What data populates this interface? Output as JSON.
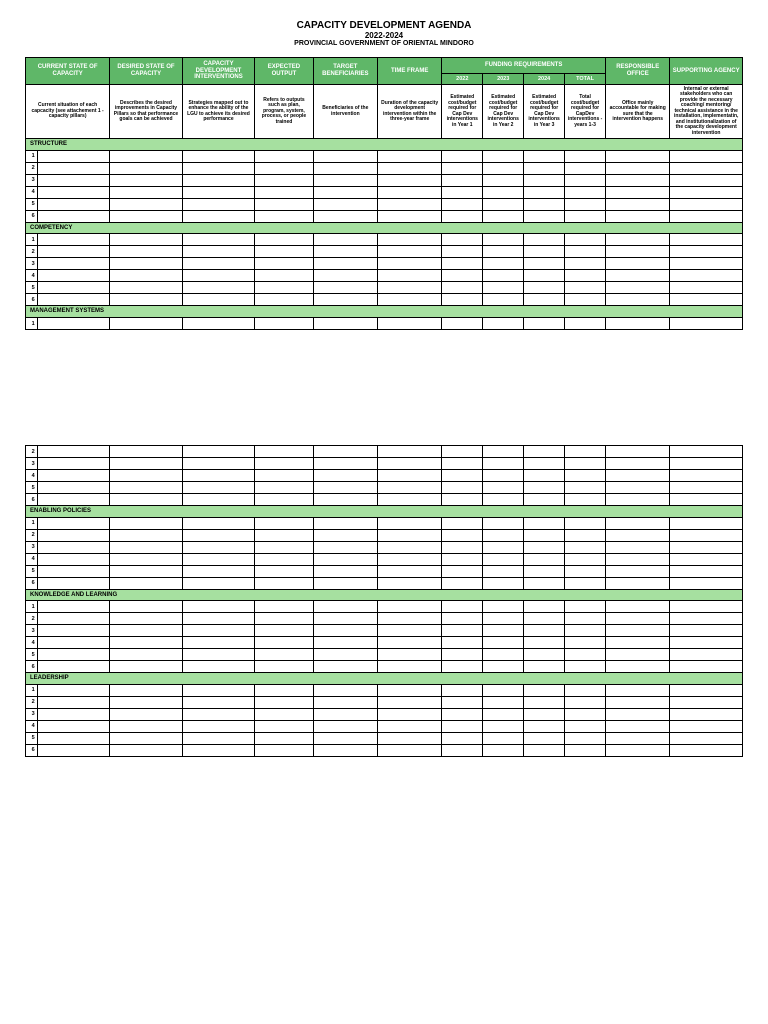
{
  "title": {
    "main": "CAPACITY DEVELOPMENT AGENDA",
    "years": "2022-2024",
    "org": "PROVINCIAL GOVERNMENT OF ORIENTAL MINDORO"
  },
  "colors": {
    "header_bg": "#5fb768",
    "header_text": "#ffffff",
    "section_bg": "#a6e0a0",
    "border": "#000000",
    "page_bg": "#ffffff"
  },
  "headers": {
    "col1": "CURRENT STATE OF CAPACITY",
    "col2": "DESIRED STATE OF CAPACITY",
    "col3": "CAPACITY DEVELOPMENT INTERVENTIONS",
    "col4": "EXPECTED OUTPUT",
    "col5": "TARGET BENEFICIARIES",
    "col6": "TIME FRAME",
    "funding": "FUNDING REQUIREMENTS",
    "f2022": "2022",
    "f2023": "2023",
    "f2024": "2024",
    "ftotal": "TOTAL",
    "col7": "RESPONSIBLE OFFICE",
    "col8": "SUPPORTING AGENCY"
  },
  "descriptions": {
    "col1": "Current situation of each capcacity (see attachement 1 - capacity pillars)",
    "col2": "Describes the desired improvements in Capacity Pillars so that performance goals can be achieved",
    "col3": "Strategies mapped out to enhance the ability of the LGU to achieve its desired performance",
    "col4": "Refers to outputs such as plan, program, system, process, or people trained",
    "col5": "Beneficiaries of the intervention",
    "col6": "Duration of the capacity development intervention within the three-year frame",
    "f2022": "Estimated cost/budget required for Cap Dev interventions in Year 1",
    "f2023": "Estimated cost/budget required for Cap Dev interventions in Year 2",
    "f2024": "Estimated cost/budget required for Cap Dev interventions in Year 3",
    "ftotal": "Total cost/budget required for CapDev interventions - years 1-3",
    "col7": "Office mainly accountable for making sure that the intervention happens",
    "col8": "Internal or external stakeholders who can provide the necessary coaching/ mentoring/ technical assistance in the installation, implementatin, and institutionalization of the capacity development intervention"
  },
  "sections": {
    "structure": "STRUCTURE",
    "competency": "COMPETENCY",
    "management": "MANAGEMENT SYSTEMS",
    "enabling": "ENABLING POLICIES",
    "knowledge": "KNOWLEDGE AND LEARNING",
    "leadership": "LEADERSHIP"
  },
  "rownums": [
    "1",
    "2",
    "3",
    "4",
    "5",
    "6"
  ]
}
